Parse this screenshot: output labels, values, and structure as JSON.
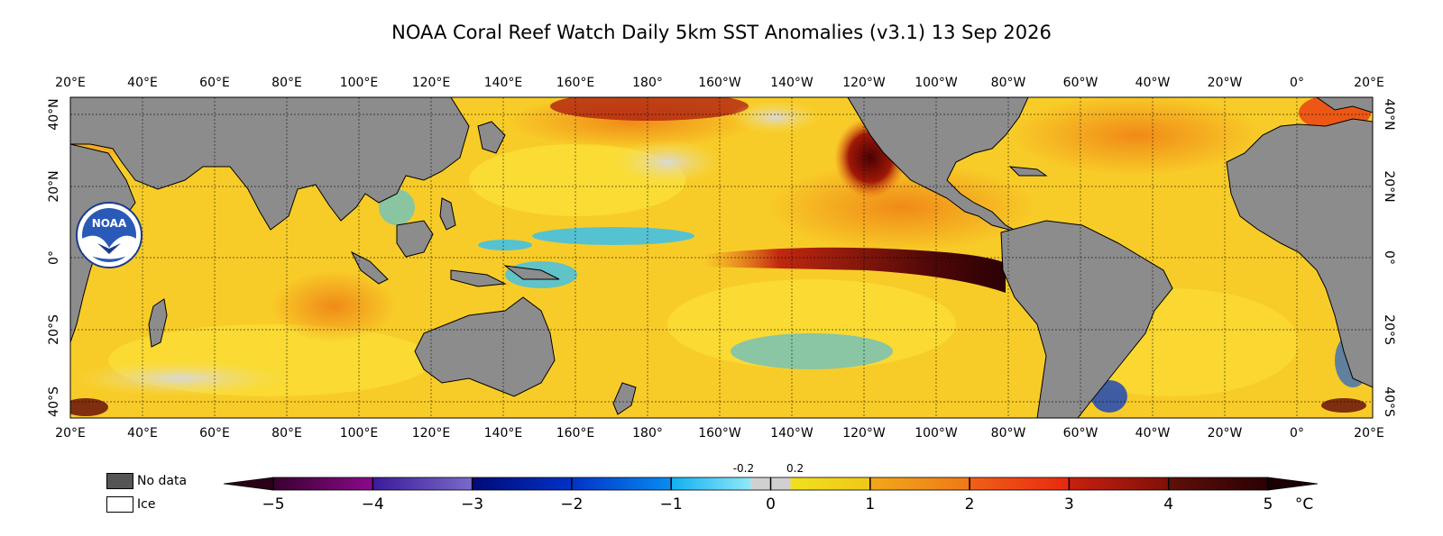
{
  "title": "NOAA Coral Reef Watch Daily 5km SST Anomalies  (v3.1)   13 Sep 2026",
  "logo_text": "NOAA",
  "lon_labels": [
    "20°E",
    "40°E",
    "60°E",
    "80°E",
    "100°E",
    "120°E",
    "140°E",
    "160°E",
    "180°",
    "160°W",
    "140°W",
    "120°W",
    "100°W",
    "80°W",
    "60°W",
    "40°W",
    "20°W",
    "0°",
    "20°E"
  ],
  "lat_labels": [
    "40°N",
    "20°N",
    "0°",
    "20°S",
    "40°S"
  ],
  "legend": {
    "no_data": {
      "label": "No data",
      "color": "#555555"
    },
    "ice": {
      "label": "Ice",
      "color": "#ffffff"
    }
  },
  "colorbar": {
    "ticks": [
      "−5",
      "−4",
      "−3",
      "−2",
      "−1",
      "0",
      "1",
      "2",
      "3",
      "4",
      "5"
    ],
    "unit": "°C",
    "near_zero_labels": [
      "-0.2",
      "0.2"
    ],
    "segments": [
      {
        "from": "#3a0030",
        "to": "#8a0a8a"
      },
      {
        "from": "#3a1a9a",
        "to": "#7a6ac8"
      },
      {
        "from": "#000a78",
        "to": "#0032c8"
      },
      {
        "from": "#0032c8",
        "to": "#0a8cf0"
      },
      {
        "from": "#10b0f0",
        "to": "#90e8f8"
      },
      {
        "from": "#d0d0d0",
        "to": "#d0d0d0"
      },
      {
        "from": "#f0e020",
        "to": "#f0c818"
      },
      {
        "from": "#f0a818",
        "to": "#f07818"
      },
      {
        "from": "#f06018",
        "to": "#e82810"
      },
      {
        "from": "#c82010",
        "to": "#801008"
      },
      {
        "from": "#601008",
        "to": "#2a0004"
      }
    ]
  },
  "colors": {
    "land": "#8c8c8c",
    "ocean_base": "#f7c422"
  }
}
